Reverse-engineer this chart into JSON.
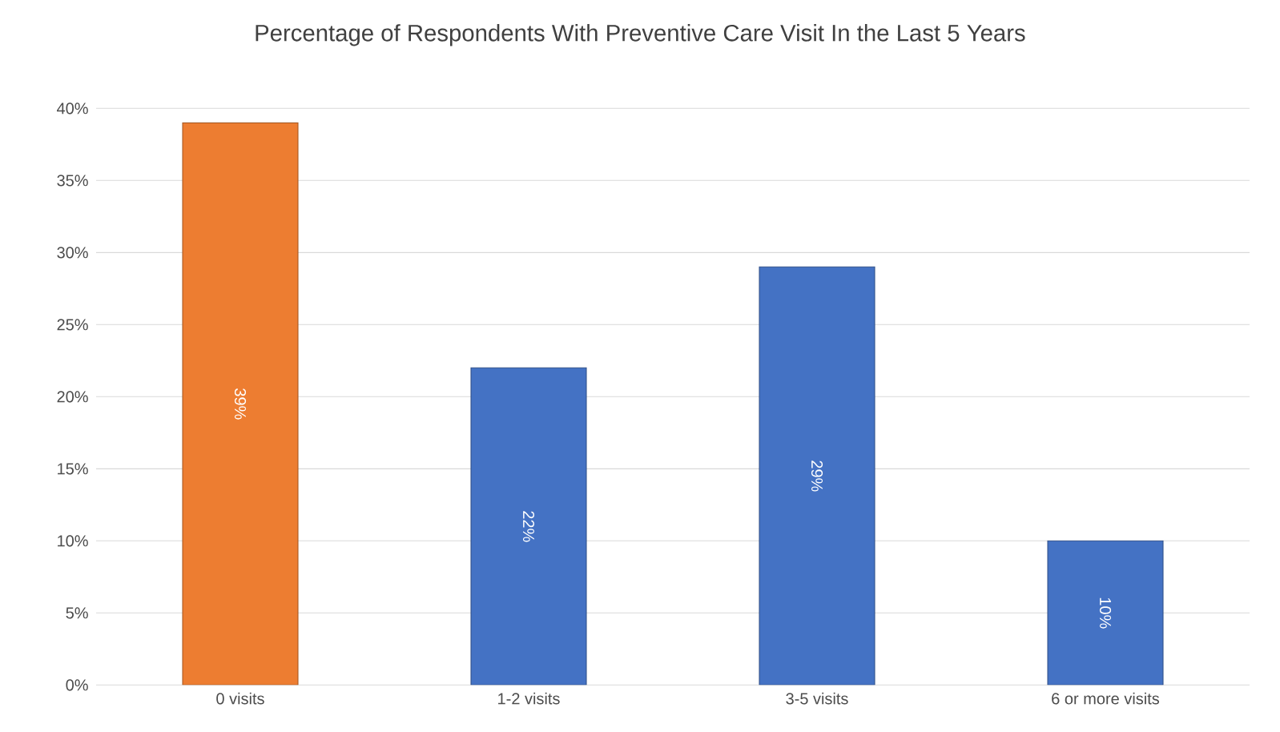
{
  "chart_data": {
    "type": "bar",
    "title": "Percentage of Respondents With Preventive Care Visit In the Last 5 Years",
    "categories": [
      "0 visits",
      "1-2 visits",
      "3-5 visits",
      "6 or more visits"
    ],
    "values": [
      39,
      22,
      29,
      10
    ],
    "colors": [
      "#ed7d31",
      "#4472c4",
      "#4472c4",
      "#4472c4"
    ],
    "value_labels": [
      "39%",
      "22%",
      "29%",
      "10%"
    ],
    "ylim": [
      0,
      40
    ],
    "yticks": [
      {
        "value": 0,
        "label": "0%"
      },
      {
        "value": 5,
        "label": "5%"
      },
      {
        "value": 10,
        "label": "10%"
      },
      {
        "value": 15,
        "label": "15%"
      },
      {
        "value": 20,
        "label": "20%"
      },
      {
        "value": 25,
        "label": "25%"
      },
      {
        "value": 30,
        "label": "30%"
      },
      {
        "value": 35,
        "label": "35%"
      },
      {
        "value": 40,
        "label": "40%"
      }
    ],
    "grid": "y"
  }
}
